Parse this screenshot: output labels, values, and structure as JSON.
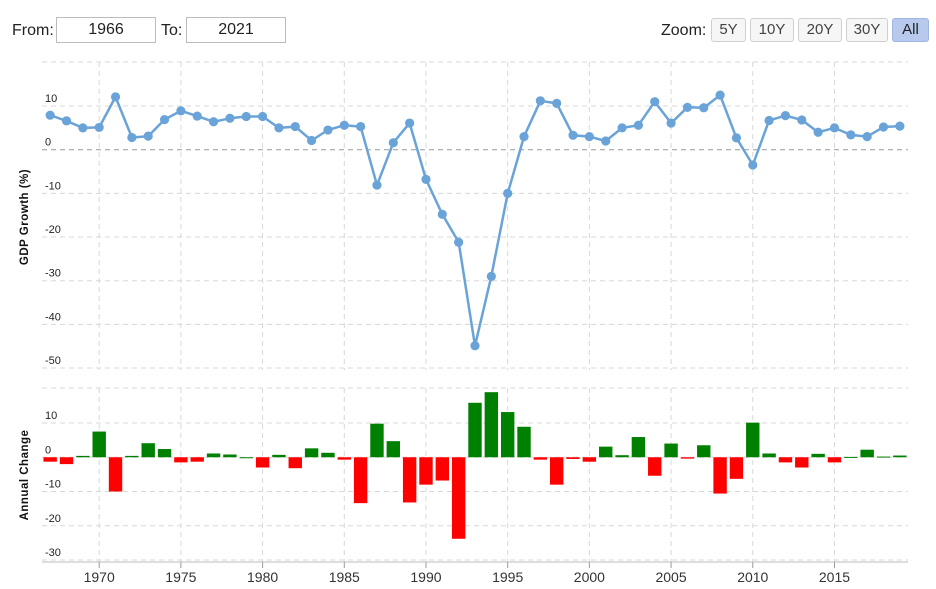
{
  "range": {
    "from_label": "From:",
    "from_value": "1966",
    "to_label": "To:",
    "to_value": "2021"
  },
  "zoom": {
    "label": "Zoom:",
    "buttons": [
      "5Y",
      "10Y",
      "20Y",
      "30Y",
      "All"
    ],
    "active": "All"
  },
  "chart_data": [
    {
      "type": "line",
      "ylabel": "GDP Growth (%)",
      "ylim": [
        -50,
        20
      ],
      "yticks": [
        10,
        0,
        -10,
        -20,
        -30,
        -40,
        -50
      ],
      "xlim": [
        1966.5,
        2019.5
      ],
      "grid": true,
      "color": "#6aa3d8",
      "x": [
        1967,
        1968,
        1969,
        1970,
        1971,
        1972,
        1973,
        1974,
        1975,
        1976,
        1977,
        1978,
        1979,
        1980,
        1981,
        1982,
        1983,
        1984,
        1985,
        1986,
        1987,
        1988,
        1989,
        1990,
        1991,
        1992,
        1993,
        1994,
        1995,
        1996,
        1997,
        1998,
        1999,
        2000,
        2001,
        2002,
        2003,
        2004,
        2005,
        2006,
        2007,
        2008,
        2009,
        2010,
        2011,
        2012,
        2013,
        2014,
        2015,
        2016,
        2017,
        2018,
        2019
      ],
      "y": [
        7.9,
        6.6,
        5.0,
        5.1,
        12.1,
        2.8,
        3.1,
        6.9,
        8.9,
        7.7,
        6.4,
        7.2,
        7.6,
        7.6,
        5.0,
        5.3,
        2.1,
        4.5,
        5.6,
        5.3,
        -8.1,
        1.6,
        6.1,
        -6.8,
        -14.8,
        -21.2,
        -44.9,
        -29.0,
        -10.0,
        3.0,
        11.2,
        10.6,
        3.3,
        3.0,
        2.0,
        5.0,
        5.6,
        11.0,
        6.1,
        9.7,
        9.6,
        12.5,
        2.7,
        -3.5,
        6.7,
        7.8,
        6.8,
        4.0,
        5.0,
        3.4,
        3.0,
        5.2,
        5.4
      ]
    },
    {
      "type": "bar",
      "ylabel": "Annual Change",
      "ylim": [
        -33,
        20
      ],
      "yticks": [
        10,
        0,
        -10,
        -20,
        -30
      ],
      "positive_color": "#008000",
      "negative_color": "#ff0000",
      "x": [
        1967,
        1968,
        1969,
        1970,
        1971,
        1972,
        1973,
        1974,
        1975,
        1976,
        1977,
        1978,
        1979,
        1980,
        1981,
        1982,
        1983,
        1984,
        1985,
        1986,
        1987,
        1988,
        1989,
        1990,
        1991,
        1992,
        1993,
        1994,
        1995,
        1996,
        1997,
        1998,
        1999,
        2000,
        2001,
        2002,
        2003,
        2004,
        2005,
        2006,
        2007,
        2008,
        2009,
        2010,
        2011,
        2012,
        2013,
        2014,
        2015,
        2016,
        2017,
        2018,
        2019
      ],
      "values": [
        -1.3,
        -2.0,
        0.4,
        7.5,
        -10.0,
        0.4,
        4.1,
        2.4,
        -1.5,
        -1.3,
        1.1,
        0.8,
        0.0,
        -3.0,
        0.7,
        -3.2,
        2.6,
        1.3,
        -0.7,
        -13.4,
        9.8,
        4.7,
        -13.2,
        -8.0,
        -6.8,
        -23.8,
        15.9,
        19.0,
        13.2,
        8.9,
        -0.7,
        -8.0,
        -0.5,
        -1.3,
        3.1,
        0.6,
        5.9,
        -5.4,
        4.0,
        -0.4,
        3.5,
        -10.6,
        -6.3,
        10.1,
        1.1,
        -1.5,
        -3.0,
        1.0,
        -1.5,
        0.1,
        2.2,
        0.2,
        0.5
      ]
    }
  ],
  "xaxis": {
    "ticks": [
      "1970",
      "1975",
      "1980",
      "1985",
      "1990",
      "1995",
      "2000",
      "2005",
      "2010",
      "2015"
    ]
  }
}
